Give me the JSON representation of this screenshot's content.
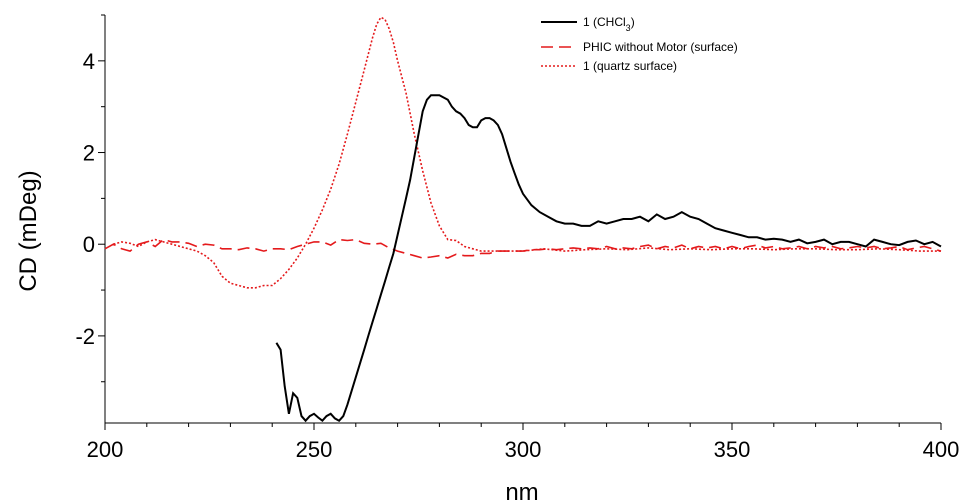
{
  "chart_data": {
    "type": "line",
    "xlabel": "nm",
    "ylabel": "CD (mDeg)",
    "xlim": [
      200,
      400
    ],
    "ylim": [
      -3.9,
      5.0
    ],
    "xticks": [
      200,
      250,
      300,
      350,
      400
    ],
    "yticks": [
      4,
      2,
      0,
      -2
    ],
    "ytick_labels": [
      "4",
      "2",
      "0",
      "-2"
    ],
    "grid": false,
    "legend_position": "top-right",
    "series": [
      {
        "name": "1 (CHCl",
        "name_sub": "3",
        "name_suffix": ")",
        "color": "#000000",
        "dash": "solid",
        "points": [
          [
            241,
            -2.15
          ],
          [
            242,
            -2.3
          ],
          [
            243,
            -3.1
          ],
          [
            244,
            -3.7
          ],
          [
            245,
            -3.25
          ],
          [
            246,
            -3.35
          ],
          [
            247,
            -3.75
          ],
          [
            248,
            -3.85
          ],
          [
            249,
            -3.75
          ],
          [
            250,
            -3.7
          ],
          [
            251,
            -3.78
          ],
          [
            252,
            -3.85
          ],
          [
            253,
            -3.75
          ],
          [
            254,
            -3.7
          ],
          [
            255,
            -3.8
          ],
          [
            256,
            -3.85
          ],
          [
            257,
            -3.75
          ],
          [
            258,
            -3.5
          ],
          [
            259,
            -3.2
          ],
          [
            260,
            -2.9
          ],
          [
            261,
            -2.6
          ],
          [
            262,
            -2.3
          ],
          [
            263,
            -2.0
          ],
          [
            264,
            -1.7
          ],
          [
            265,
            -1.4
          ],
          [
            266,
            -1.1
          ],
          [
            267,
            -0.8
          ],
          [
            268,
            -0.5
          ],
          [
            269,
            -0.2
          ],
          [
            270,
            0.2
          ],
          [
            271,
            0.6
          ],
          [
            272,
            1.0
          ],
          [
            273,
            1.4
          ],
          [
            274,
            1.9
          ],
          [
            275,
            2.4
          ],
          [
            276,
            2.9
          ],
          [
            277,
            3.15
          ],
          [
            278,
            3.25
          ],
          [
            280,
            3.25
          ],
          [
            281,
            3.2
          ],
          [
            282,
            3.15
          ],
          [
            283,
            3.0
          ],
          [
            284,
            2.9
          ],
          [
            285,
            2.85
          ],
          [
            286,
            2.75
          ],
          [
            287,
            2.6
          ],
          [
            288,
            2.55
          ],
          [
            289,
            2.55
          ],
          [
            290,
            2.7
          ],
          [
            291,
            2.75
          ],
          [
            292,
            2.75
          ],
          [
            293,
            2.7
          ],
          [
            294,
            2.6
          ],
          [
            295,
            2.4
          ],
          [
            296,
            2.1
          ],
          [
            297,
            1.8
          ],
          [
            298,
            1.55
          ],
          [
            299,
            1.3
          ],
          [
            300,
            1.1
          ],
          [
            302,
            0.85
          ],
          [
            304,
            0.7
          ],
          [
            306,
            0.6
          ],
          [
            308,
            0.5
          ],
          [
            310,
            0.45
          ],
          [
            312,
            0.45
          ],
          [
            314,
            0.4
          ],
          [
            316,
            0.4
          ],
          [
            318,
            0.5
          ],
          [
            320,
            0.45
          ],
          [
            322,
            0.5
          ],
          [
            324,
            0.55
          ],
          [
            326,
            0.55
          ],
          [
            328,
            0.6
          ],
          [
            330,
            0.5
          ],
          [
            332,
            0.65
          ],
          [
            334,
            0.55
          ],
          [
            336,
            0.6
          ],
          [
            338,
            0.7
          ],
          [
            340,
            0.6
          ],
          [
            342,
            0.55
          ],
          [
            344,
            0.45
          ],
          [
            346,
            0.35
          ],
          [
            348,
            0.3
          ],
          [
            350,
            0.25
          ],
          [
            352,
            0.2
          ],
          [
            354,
            0.15
          ],
          [
            356,
            0.15
          ],
          [
            358,
            0.1
          ],
          [
            360,
            0.12
          ],
          [
            362,
            0.1
          ],
          [
            364,
            0.05
          ],
          [
            366,
            0.1
          ],
          [
            368,
            0.02
          ],
          [
            370,
            0.05
          ],
          [
            372,
            0.1
          ],
          [
            374,
            0.0
          ],
          [
            376,
            0.05
          ],
          [
            378,
            0.05
          ],
          [
            380,
            0.0
          ],
          [
            382,
            -0.05
          ],
          [
            384,
            0.1
          ],
          [
            386,
            0.05
          ],
          [
            388,
            0.0
          ],
          [
            390,
            -0.02
          ],
          [
            392,
            0.05
          ],
          [
            394,
            0.08
          ],
          [
            396,
            0.0
          ],
          [
            398,
            0.05
          ],
          [
            400,
            -0.05
          ]
        ]
      },
      {
        "name": "PHIC without Motor (surface)",
        "color": "#e41a1c",
        "dash": "12 6",
        "points": [
          [
            200,
            -0.1
          ],
          [
            202,
            0.0
          ],
          [
            204,
            -0.1
          ],
          [
            206,
            -0.15
          ],
          [
            208,
            0.0
          ],
          [
            210,
            0.05
          ],
          [
            212,
            -0.05
          ],
          [
            214,
            0.1
          ],
          [
            216,
            0.05
          ],
          [
            218,
            0.05
          ],
          [
            220,
            0.02
          ],
          [
            222,
            -0.05
          ],
          [
            224,
            0.0
          ],
          [
            226,
            -0.02
          ],
          [
            228,
            -0.1
          ],
          [
            230,
            -0.1
          ],
          [
            232,
            -0.12
          ],
          [
            234,
            -0.08
          ],
          [
            236,
            -0.1
          ],
          [
            238,
            -0.15
          ],
          [
            240,
            -0.1
          ],
          [
            242,
            -0.1
          ],
          [
            244,
            -0.12
          ],
          [
            246,
            -0.05
          ],
          [
            248,
            0.0
          ],
          [
            250,
            0.05
          ],
          [
            252,
            0.05
          ],
          [
            254,
            -0.02
          ],
          [
            256,
            0.1
          ],
          [
            258,
            0.08
          ],
          [
            260,
            0.1
          ],
          [
            262,
            0.02
          ],
          [
            264,
            0.0
          ],
          [
            266,
            0.02
          ],
          [
            268,
            -0.08
          ],
          [
            270,
            -0.15
          ],
          [
            272,
            -0.2
          ],
          [
            274,
            -0.25
          ],
          [
            276,
            -0.3
          ],
          [
            278,
            -0.28
          ],
          [
            280,
            -0.25
          ],
          [
            282,
            -0.3
          ],
          [
            284,
            -0.22
          ],
          [
            286,
            -0.25
          ],
          [
            288,
            -0.25
          ],
          [
            290,
            -0.2
          ],
          [
            292,
            -0.2
          ],
          [
            294,
            -0.15
          ],
          [
            296,
            -0.15
          ],
          [
            298,
            -0.15
          ],
          [
            300,
            -0.15
          ],
          [
            302,
            -0.12
          ],
          [
            304,
            -0.12
          ],
          [
            306,
            -0.1
          ],
          [
            308,
            -0.12
          ],
          [
            310,
            -0.1
          ],
          [
            312,
            -0.08
          ],
          [
            314,
            -0.1
          ],
          [
            316,
            -0.08
          ],
          [
            318,
            -0.1
          ],
          [
            320,
            -0.05
          ],
          [
            322,
            -0.1
          ],
          [
            324,
            -0.08
          ],
          [
            326,
            -0.1
          ],
          [
            328,
            -0.05
          ],
          [
            330,
            -0.02
          ],
          [
            332,
            -0.1
          ],
          [
            334,
            -0.05
          ],
          [
            336,
            -0.08
          ],
          [
            338,
            -0.02
          ],
          [
            340,
            -0.1
          ],
          [
            342,
            -0.05
          ],
          [
            344,
            -0.08
          ],
          [
            346,
            -0.05
          ],
          [
            348,
            -0.1
          ],
          [
            350,
            -0.05
          ],
          [
            352,
            -0.1
          ],
          [
            354,
            -0.05
          ],
          [
            356,
            -0.02
          ],
          [
            358,
            -0.08
          ],
          [
            360,
            -0.05
          ],
          [
            362,
            -0.1
          ],
          [
            364,
            -0.08
          ],
          [
            366,
            -0.05
          ],
          [
            368,
            -0.1
          ],
          [
            370,
            -0.05
          ],
          [
            372,
            -0.08
          ],
          [
            374,
            -0.05
          ],
          [
            376,
            -0.1
          ],
          [
            378,
            -0.08
          ],
          [
            380,
            -0.05
          ],
          [
            382,
            -0.08
          ],
          [
            384,
            -0.05
          ],
          [
            386,
            -0.1
          ],
          [
            388,
            -0.08
          ],
          [
            390,
            -0.05
          ],
          [
            392,
            -0.12
          ],
          [
            394,
            -0.08
          ],
          [
            396,
            -0.05
          ],
          [
            398,
            -0.1
          ],
          [
            400,
            -0.15
          ]
        ]
      },
      {
        "name": "1 (quartz surface)",
        "color": "#e41a1c",
        "dash": "2 2",
        "points": [
          [
            202,
            0.0
          ],
          [
            204,
            0.05
          ],
          [
            206,
            0.02
          ],
          [
            208,
            -0.05
          ],
          [
            210,
            0.05
          ],
          [
            212,
            0.1
          ],
          [
            214,
            0.05
          ],
          [
            216,
            0.0
          ],
          [
            218,
            -0.05
          ],
          [
            220,
            -0.1
          ],
          [
            222,
            -0.15
          ],
          [
            224,
            -0.25
          ],
          [
            226,
            -0.4
          ],
          [
            228,
            -0.7
          ],
          [
            230,
            -0.85
          ],
          [
            232,
            -0.9
          ],
          [
            234,
            -0.95
          ],
          [
            236,
            -0.95
          ],
          [
            238,
            -0.9
          ],
          [
            240,
            -0.9
          ],
          [
            242,
            -0.75
          ],
          [
            244,
            -0.55
          ],
          [
            246,
            -0.3
          ],
          [
            248,
            0.0
          ],
          [
            250,
            0.35
          ],
          [
            252,
            0.75
          ],
          [
            254,
            1.2
          ],
          [
            256,
            1.75
          ],
          [
            258,
            2.4
          ],
          [
            260,
            3.1
          ],
          [
            262,
            3.8
          ],
          [
            264,
            4.5
          ],
          [
            265,
            4.8
          ],
          [
            266,
            4.95
          ],
          [
            267,
            4.9
          ],
          [
            268,
            4.7
          ],
          [
            269,
            4.4
          ],
          [
            270,
            4.0
          ],
          [
            272,
            3.3
          ],
          [
            274,
            2.4
          ],
          [
            276,
            1.6
          ],
          [
            278,
            0.9
          ],
          [
            280,
            0.4
          ],
          [
            282,
            0.1
          ],
          [
            284,
            0.08
          ],
          [
            286,
            -0.05
          ],
          [
            288,
            -0.1
          ],
          [
            290,
            -0.15
          ],
          [
            295,
            -0.15
          ],
          [
            300,
            -0.15
          ],
          [
            305,
            -0.1
          ],
          [
            310,
            -0.15
          ],
          [
            315,
            -0.12
          ],
          [
            320,
            -0.1
          ],
          [
            325,
            -0.12
          ],
          [
            330,
            -0.08
          ],
          [
            335,
            -0.12
          ],
          [
            340,
            -0.1
          ],
          [
            345,
            -0.12
          ],
          [
            350,
            -0.1
          ],
          [
            355,
            -0.1
          ],
          [
            360,
            -0.12
          ],
          [
            365,
            -0.1
          ],
          [
            370,
            -0.1
          ],
          [
            375,
            -0.12
          ],
          [
            380,
            -0.12
          ],
          [
            385,
            -0.1
          ],
          [
            390,
            -0.12
          ],
          [
            395,
            -0.15
          ],
          [
            400,
            -0.15
          ]
        ]
      }
    ]
  }
}
